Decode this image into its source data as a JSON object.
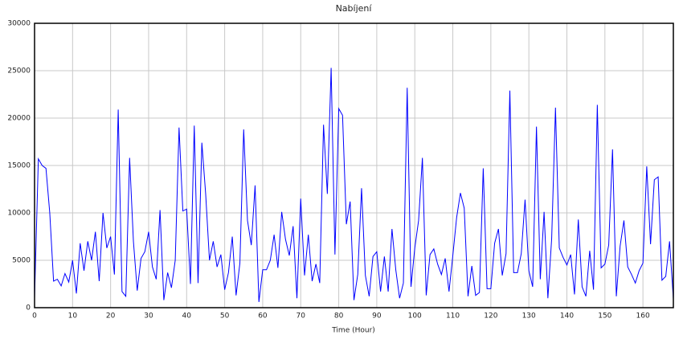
{
  "chart_data": {
    "type": "line",
    "title": "Nabíjení",
    "x_label": "Time (Hour)",
    "x": [
      0,
      1,
      2,
      3,
      4,
      5,
      6,
      7,
      8,
      9,
      10,
      11,
      12,
      13,
      14,
      15,
      16,
      17,
      18,
      19,
      20,
      21,
      22,
      23,
      24,
      25,
      26,
      27,
      28,
      29,
      30,
      31,
      32,
      33,
      34,
      35,
      36,
      37,
      38,
      39,
      40,
      41,
      42,
      43,
      44,
      45,
      46,
      47,
      48,
      49,
      50,
      51,
      52,
      53,
      54,
      55,
      56,
      57,
      58,
      59,
      60,
      61,
      62,
      63,
      64,
      65,
      66,
      67,
      68,
      69,
      70,
      71,
      72,
      73,
      74,
      75,
      76,
      77,
      78,
      79,
      80,
      81,
      82,
      83,
      84,
      85,
      86,
      87,
      88,
      89,
      90,
      91,
      92,
      93,
      94,
      95,
      96,
      97,
      98,
      99,
      100,
      101,
      102,
      103,
      104,
      105,
      106,
      107,
      108,
      109,
      110,
      111,
      112,
      113,
      114,
      115,
      116,
      117,
      118,
      119,
      120,
      121,
      122,
      123,
      124,
      125,
      126,
      127,
      128,
      129,
      130,
      131,
      132,
      133,
      134,
      135,
      136,
      137,
      138,
      139,
      140,
      141,
      142,
      143,
      144,
      145,
      146,
      147,
      148,
      149,
      150,
      151,
      152,
      153,
      154,
      155,
      156,
      157,
      158,
      159,
      160,
      161,
      162,
      163,
      164,
      165,
      166,
      167,
      168
    ],
    "series": [
      {
        "name": "Nabíjení",
        "color": "#0000ff",
        "values": [
          1000,
          15700,
          15000,
          14700,
          10000,
          2800,
          3000,
          2300,
          3600,
          2700,
          5000,
          1500,
          6800,
          3900,
          7000,
          5000,
          8000,
          2800,
          10000,
          6300,
          7500,
          3500,
          20900,
          1700,
          1200,
          15800,
          7000,
          1800,
          5200,
          5900,
          8000,
          4300,
          3000,
          10300,
          800,
          3700,
          2100,
          5000,
          19000,
          10200,
          10400,
          2500,
          19200,
          2600,
          17400,
          12000,
          5000,
          7000,
          4300,
          5600,
          1900,
          3700,
          7500,
          1300,
          4700,
          18800,
          9200,
          6600,
          12900,
          600,
          4000,
          4000,
          5000,
          7700,
          4200,
          10100,
          7200,
          5500,
          8600,
          1000,
          11500,
          3400,
          7700,
          2800,
          4600,
          2600,
          19300,
          12000,
          25300,
          5600,
          21000,
          20300,
          8800,
          11200,
          800,
          3500,
          12600,
          3400,
          1200,
          5400,
          5900,
          1700,
          5400,
          1700,
          8300,
          4000,
          1000,
          2600,
          23200,
          2200,
          6300,
          9200,
          15800,
          1300,
          5600,
          6200,
          4600,
          3500,
          5200,
          1700,
          5500,
          9500,
          12100,
          10500,
          1200,
          4400,
          1300,
          1600,
          14700,
          2000,
          2000,
          6800,
          8300,
          3400,
          5700,
          22900,
          3700,
          3700,
          5700,
          11400,
          3900,
          2200,
          19100,
          3000,
          10100,
          1000,
          7300,
          21100,
          6300,
          5300,
          4500,
          5600,
          1400,
          9300,
          2200,
          1200,
          6000,
          1900,
          21400,
          4200,
          4600,
          6600,
          16700,
          1200,
          6500,
          9200,
          4300,
          3500,
          2600,
          3900,
          4700,
          14900,
          6700,
          13500,
          13800,
          2900,
          3300,
          7000,
          900
        ]
      }
    ],
    "xlim": [
      0,
      168
    ],
    "ylim": [
      0,
      30000
    ],
    "xticks": [
      0,
      10,
      20,
      30,
      40,
      50,
      60,
      70,
      80,
      90,
      100,
      110,
      120,
      130,
      140,
      150,
      160
    ],
    "yticks": [
      0,
      5000,
      10000,
      15000,
      20000,
      25000,
      30000
    ],
    "grid": true
  }
}
